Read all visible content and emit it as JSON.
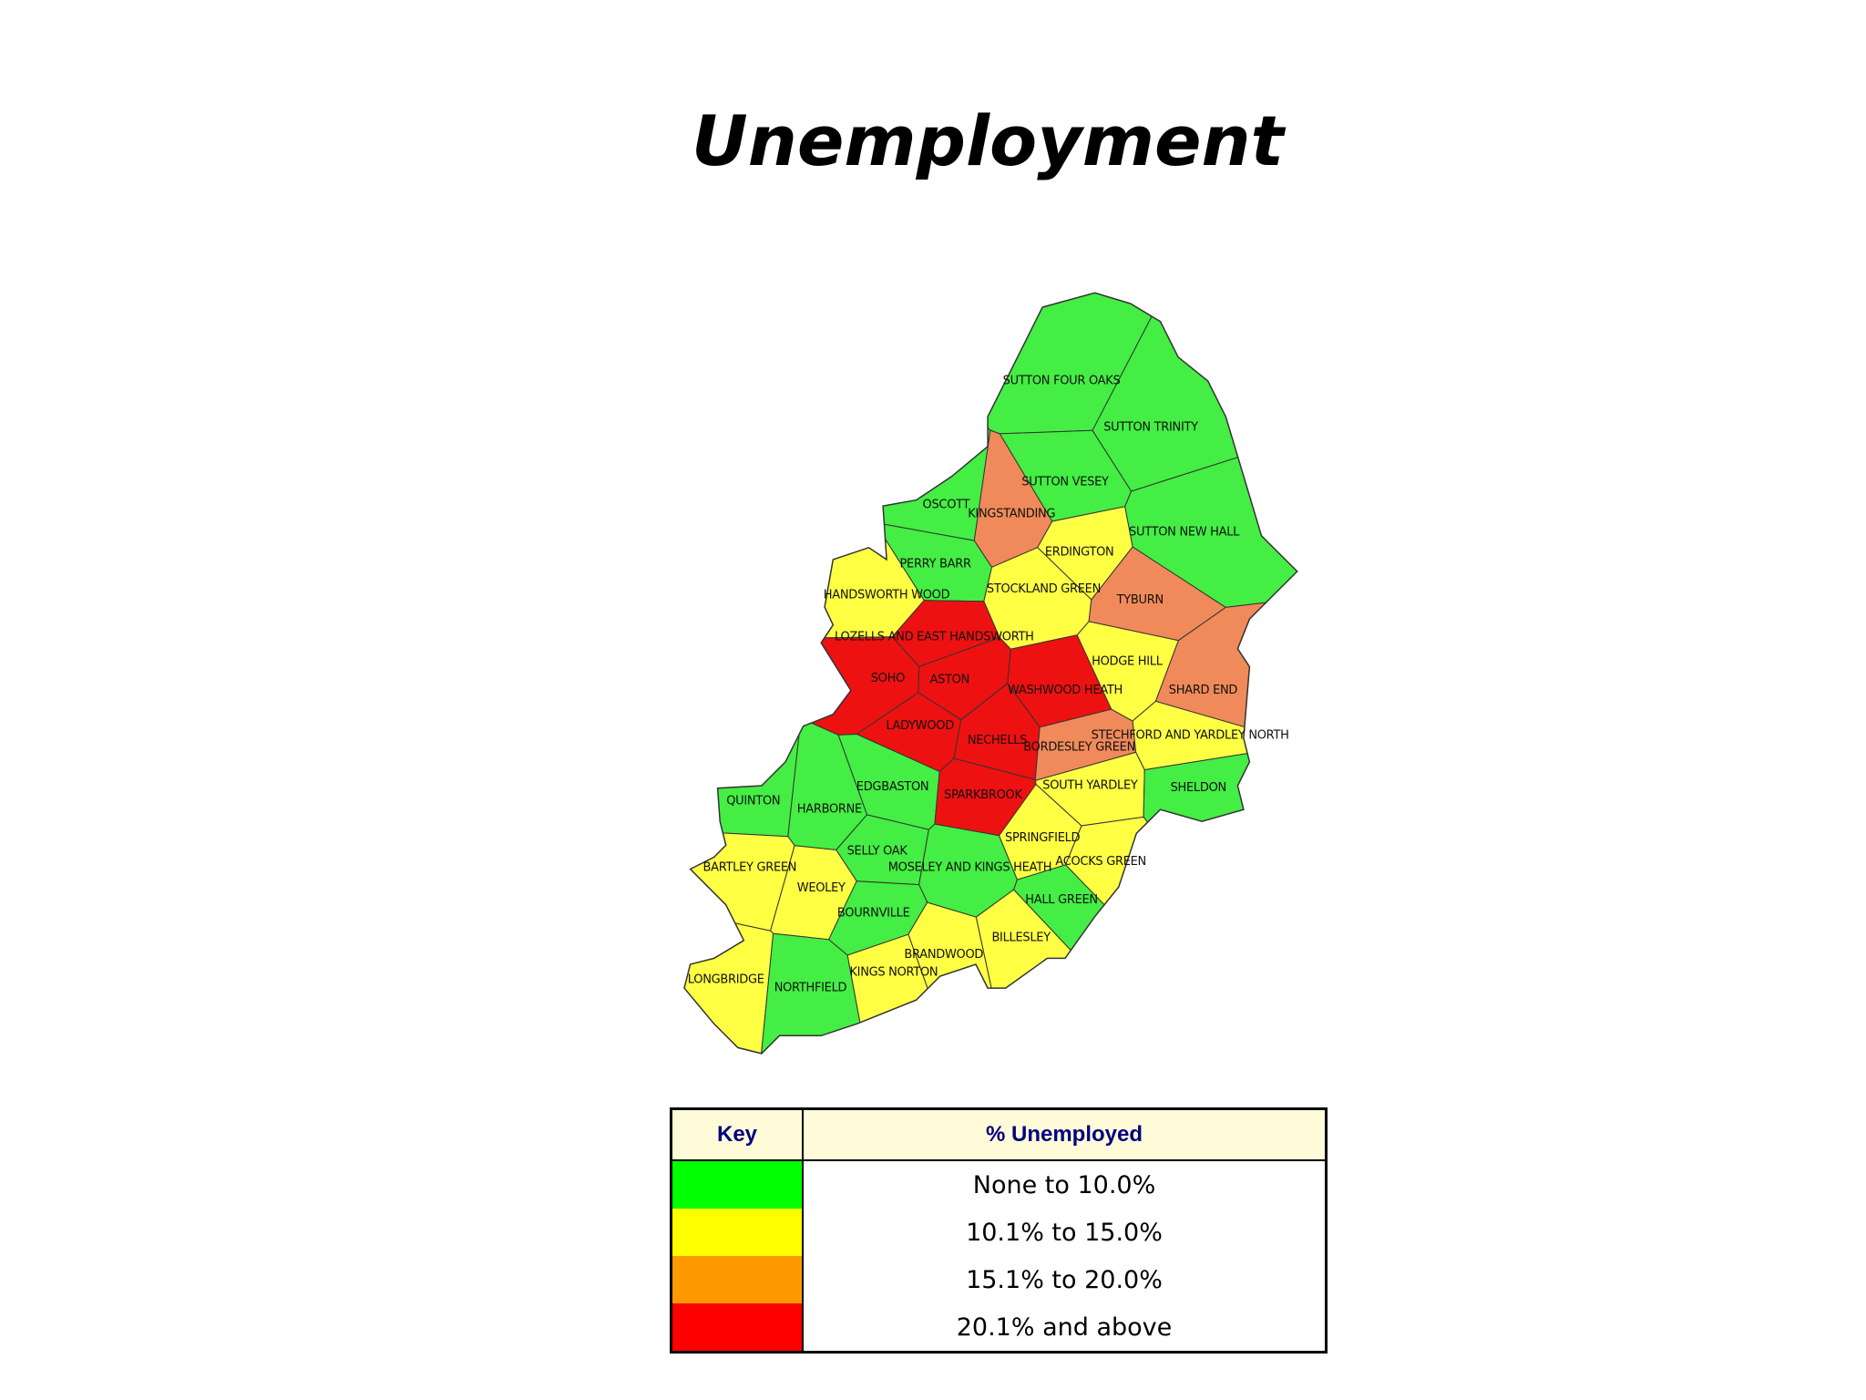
{
  "title": "Unemployment",
  "map": {
    "wards": [
      {
        "name": "SUTTON FOUR OAKS",
        "color": "#44ee44"
      },
      {
        "name": "SUTTON TRINITY",
        "color": "#44ee44"
      },
      {
        "name": "SUTTON VESEY",
        "color": "#44ee44"
      },
      {
        "name": "OSCOTT",
        "color": "#44ee44"
      },
      {
        "name": "KINGSTANDING",
        "color": "#f08a5a"
      },
      {
        "name": "SUTTON NEW HALL",
        "color": "#44ee44"
      },
      {
        "name": "ERDINGTON",
        "color": "#ffff44"
      },
      {
        "name": "PERRY BARR",
        "color": "#44ee44"
      },
      {
        "name": "HANDSWORTH WOOD",
        "color": "#ffff44"
      },
      {
        "name": "STOCKLAND GREEN",
        "color": "#ffff44"
      },
      {
        "name": "TYBURN",
        "color": "#f08a5a"
      },
      {
        "name": "LOZELLS AND EAST HANDSWORTH",
        "color": "#ee1111"
      },
      {
        "name": "HODGE HILL",
        "color": "#ffff44"
      },
      {
        "name": "SOHO",
        "color": "#ee1111"
      },
      {
        "name": "ASTON",
        "color": "#ee1111"
      },
      {
        "name": "WASHWOOD HEATH",
        "color": "#ee1111"
      },
      {
        "name": "SHARD END",
        "color": "#f08a5a"
      },
      {
        "name": "LADYWOOD",
        "color": "#ee1111"
      },
      {
        "name": "STECHFORD AND YARDLEY NORTH",
        "color": "#ffff44"
      },
      {
        "name": "NECHELLS",
        "color": "#ee1111"
      },
      {
        "name": "BORDESLEY GREEN",
        "color": "#f08a5a"
      },
      {
        "name": "EDGBASTON",
        "color": "#44ee44"
      },
      {
        "name": "SPARKBROOK",
        "color": "#ee1111"
      },
      {
        "name": "SOUTH YARDLEY",
        "color": "#ffff44"
      },
      {
        "name": "SHELDON",
        "color": "#44ee44"
      },
      {
        "name": "QUINTON",
        "color": "#44ee44"
      },
      {
        "name": "HARBORNE",
        "color": "#44ee44"
      },
      {
        "name": "SPRINGFIELD",
        "color": "#ffff44"
      },
      {
        "name": "SELLY OAK",
        "color": "#44ee44"
      },
      {
        "name": "MOSELEY AND KINGS HEATH",
        "color": "#44ee44"
      },
      {
        "name": "ACOCKS GREEN",
        "color": "#ffff44"
      },
      {
        "name": "BARTLEY GREEN",
        "color": "#ffff44"
      },
      {
        "name": "WEOLEY",
        "color": "#ffff44"
      },
      {
        "name": "HALL GREEN",
        "color": "#44ee44"
      },
      {
        "name": "BOURNVILLE",
        "color": "#44ee44"
      },
      {
        "name": "BILLESLEY",
        "color": "#ffff44"
      },
      {
        "name": "BRANDWOOD",
        "color": "#ffff44"
      },
      {
        "name": "KINGS NORTON",
        "color": "#ffff44"
      },
      {
        "name": "LONGBRIDGE",
        "color": "#ffff44"
      },
      {
        "name": "NORTHFIELD",
        "color": "#44ee44"
      }
    ]
  },
  "key": {
    "header": [
      "Key",
      "% Unemployed"
    ],
    "rows": [
      {
        "color": "#00ff00",
        "label": "None to 10.0%"
      },
      {
        "color": "#ffff00",
        "label": "10.1% to 15.0%"
      },
      {
        "color": "#ff9900",
        "label": "15.1% to 20.0%"
      },
      {
        "color": "#ff0000",
        "label": "20.1% and above"
      }
    ]
  }
}
